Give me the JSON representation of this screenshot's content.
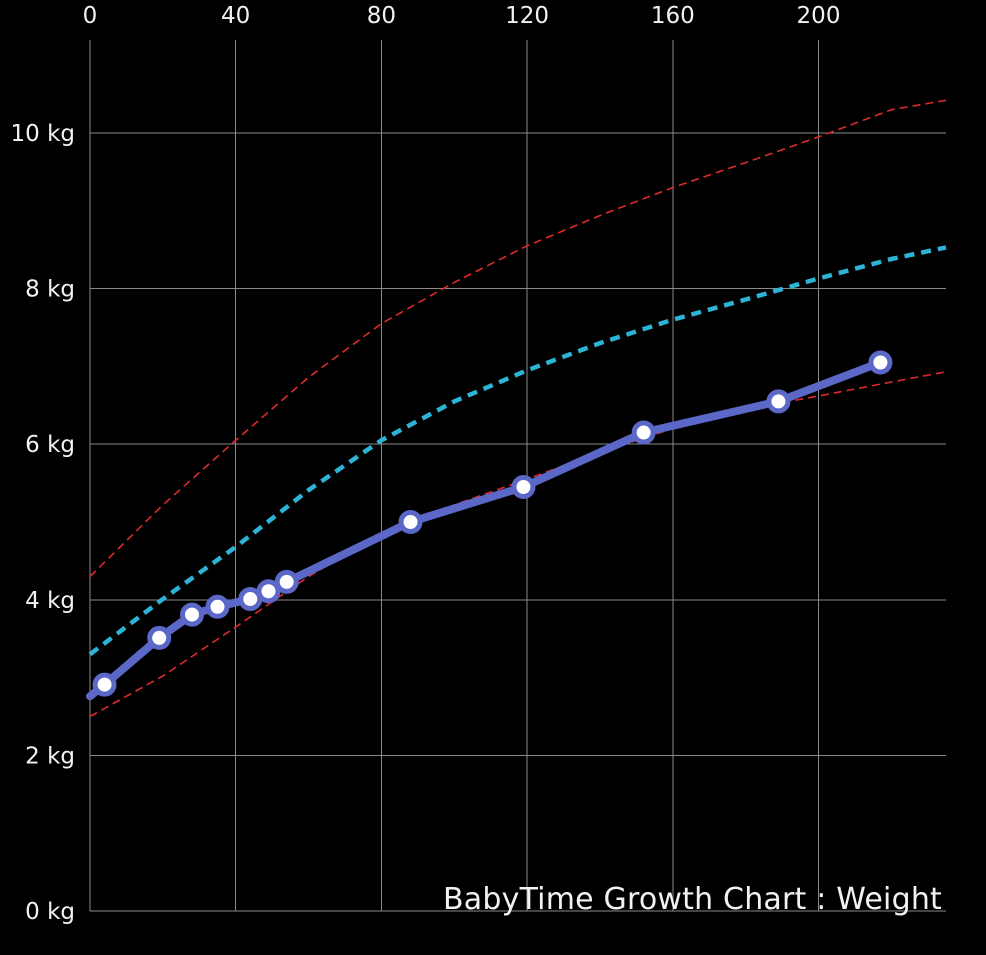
{
  "chart_data": {
    "type": "line",
    "title": "BabyTime Growth Chart : Weight",
    "xlim": [
      0,
      235
    ],
    "ylim": [
      0,
      10.0
    ],
    "x_ticks": [
      0,
      40,
      80,
      120,
      160,
      200
    ],
    "x_tick_labels": [
      "0",
      "40",
      "80",
      "120",
      "160",
      "200"
    ],
    "y_ticks": [
      0,
      2,
      4,
      6,
      8,
      10
    ],
    "y_tick_labels": [
      "0 kg",
      "2 kg",
      "4 kg",
      "6 kg",
      "8 kg",
      "10 kg"
    ],
    "grid": true,
    "colors": {
      "background": "#000000",
      "grid": "#8a8a8a",
      "text": "#f2f2f2",
      "baby": "#5b68c8",
      "median": "#2cb3d6",
      "bounds": "#dd2b2b"
    },
    "series": [
      {
        "color": "#dd2b2b",
        "style": "dashed-thin",
        "x": [
          0,
          20,
          40,
          60,
          80,
          100,
          120,
          140,
          160,
          180,
          200,
          220,
          235
        ],
        "y": [
          4.3,
          5.22,
          6.05,
          6.86,
          7.55,
          8.08,
          8.55,
          8.94,
          9.3,
          9.62,
          9.95,
          10.3,
          10.42
        ]
      },
      {
        "color": "#2cb3d6",
        "style": "dashed-thick",
        "x": [
          0,
          20,
          40,
          60,
          80,
          100,
          120,
          140,
          160,
          180,
          200,
          220,
          235
        ],
        "y": [
          3.3,
          4.01,
          4.68,
          5.41,
          6.05,
          6.55,
          6.95,
          7.3,
          7.6,
          7.86,
          8.13,
          8.38,
          8.53
        ]
      },
      {
        "color": "#dd2b2b",
        "style": "dashed-thin",
        "x": [
          0,
          20,
          40,
          60,
          80,
          100,
          120,
          140,
          160,
          180,
          200,
          220,
          235
        ],
        "y": [
          2.5,
          3.02,
          3.65,
          4.3,
          4.85,
          5.22,
          5.55,
          5.9,
          6.2,
          6.45,
          6.62,
          6.8,
          6.93
        ]
      },
      {
        "color": "#5b68c8",
        "style": "solid-thick",
        "x": [
          0,
          4,
          19,
          28,
          35,
          44,
          49,
          54,
          88,
          119,
          152,
          189,
          217
        ],
        "y": [
          2.76,
          2.91,
          3.51,
          3.81,
          3.91,
          4.01,
          4.11,
          4.23,
          5.0,
          5.45,
          6.15,
          6.55,
          7.05
        ],
        "markers": [
          false,
          true,
          true,
          true,
          true,
          true,
          true,
          true,
          true,
          true,
          true,
          true,
          true
        ]
      }
    ]
  }
}
